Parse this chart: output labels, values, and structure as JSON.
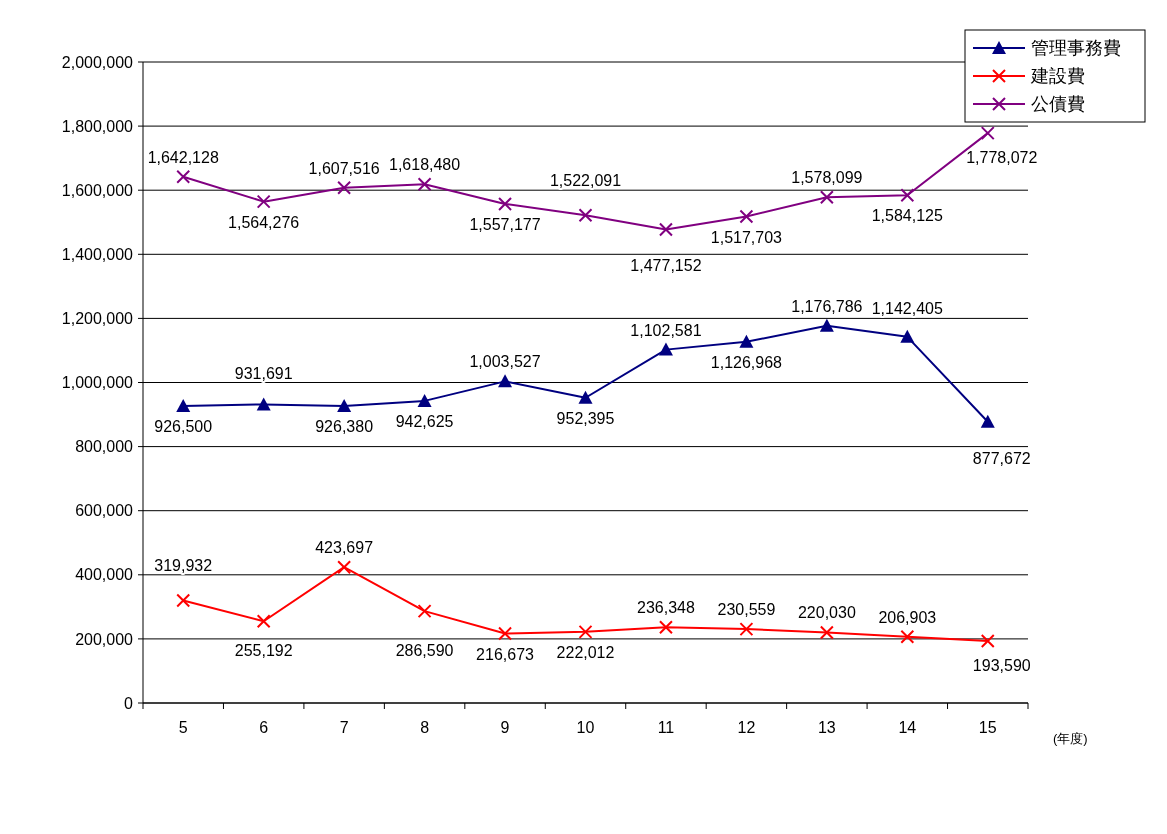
{
  "chart_data": {
    "type": "line",
    "categories": [
      "5",
      "6",
      "7",
      "8",
      "9",
      "10",
      "11",
      "12",
      "13",
      "14",
      "15"
    ],
    "xlabel": "(年度)",
    "series": [
      {
        "name": "管理事務費",
        "color": "#000080",
        "marker": "triangle",
        "values": [
          926500,
          931691,
          926380,
          942625,
          1003527,
          952395,
          1102581,
          1126968,
          1176786,
          1142405,
          877672
        ],
        "value_labels": [
          "926,500",
          "931,691",
          "926,380",
          "942,625",
          "1,003,527",
          "952,395",
          "1,102,581",
          "1,126,968",
          "1,176,786",
          "1,142,405",
          "877,672"
        ]
      },
      {
        "name": "建設費",
        "color": "#ff0000",
        "marker": "cross",
        "values": [
          319932,
          255192,
          423697,
          286590,
          216673,
          222012,
          236348,
          230559,
          220030,
          206903,
          193590
        ],
        "value_labels": [
          "319,932",
          "255,192",
          "423,697",
          "286,590",
          "216,673",
          "222,012",
          "236,348",
          "230,559",
          "220,030",
          "206,903",
          "193,590"
        ]
      },
      {
        "name": "公債費",
        "color": "#800080",
        "marker": "cross",
        "values": [
          1642128,
          1564276,
          1607516,
          1618480,
          1557177,
          1522091,
          1477152,
          1517703,
          1578099,
          1584125,
          1778072
        ],
        "value_labels": [
          "1,642,128",
          "1,564,276",
          "1,607,516",
          "1,618,480",
          "1,557,177",
          "1,522,091",
          "1,477,152",
          "1,517,703",
          "1,578,099",
          "1,584,125",
          "1,778,072"
        ]
      }
    ],
    "ylim": [
      0,
      2000000
    ],
    "yticks": [
      {
        "value": 0,
        "label": "0"
      },
      {
        "value": 200000,
        "label": "200,000"
      },
      {
        "value": 400000,
        "label": "400,000"
      },
      {
        "value": 600000,
        "label": "600,000"
      },
      {
        "value": 800000,
        "label": "800,000"
      },
      {
        "value": 1000000,
        "label": "1,000,000"
      },
      {
        "value": 1200000,
        "label": "1,200,000"
      },
      {
        "value": 1400000,
        "label": "1,400,000"
      },
      {
        "value": 1600000,
        "label": "1,600,000"
      },
      {
        "value": 1800000,
        "label": "1,800,000"
      },
      {
        "value": 2000000,
        "label": "2,000,000"
      }
    ],
    "grid": "y",
    "legend": "top right"
  }
}
